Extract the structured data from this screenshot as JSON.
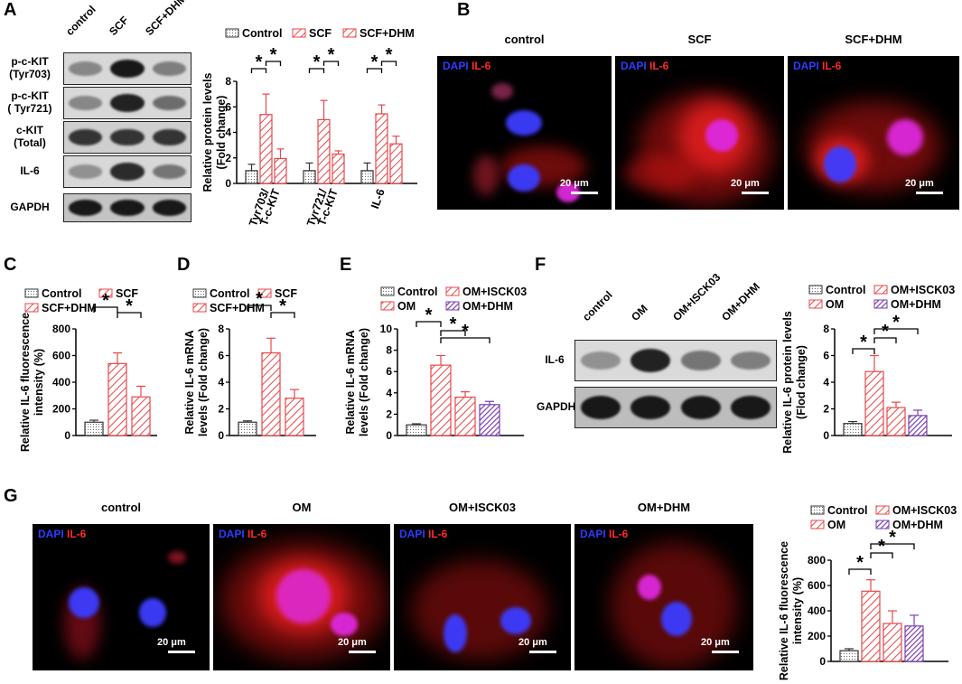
{
  "panels": {
    "A": "A",
    "B": "B",
    "C": "C",
    "D": "D",
    "E": "E",
    "F": "F",
    "G": "G"
  },
  "blotA": {
    "lanes": [
      "control",
      "SCF",
      "SCF+DHM"
    ],
    "rows": [
      {
        "label": "p-c-KIT\n(Tyr703)",
        "intensity": [
          0.35,
          0.95,
          0.4
        ]
      },
      {
        "label": "p-c-KIT\n( Tyr721)",
        "intensity": [
          0.35,
          0.9,
          0.5
        ]
      },
      {
        "label": "c-KIT\n(Total)",
        "intensity": [
          0.8,
          0.8,
          0.8
        ]
      },
      {
        "label": "IL-6",
        "intensity": [
          0.3,
          0.85,
          0.45
        ]
      },
      {
        "label": "GAPDH",
        "intensity": [
          0.95,
          0.95,
          0.95
        ]
      }
    ]
  },
  "blotF": {
    "lanes": [
      "control",
      "OM",
      "OM+ISCK03",
      "OM+DHM"
    ],
    "rows": [
      {
        "label": "IL-6",
        "intensity": [
          0.3,
          0.9,
          0.45,
          0.4
        ]
      },
      {
        "label": "GAPDH",
        "intensity": [
          0.95,
          0.95,
          0.95,
          0.95
        ]
      }
    ]
  },
  "micrographs": {
    "dapi": "DAPI",
    "il6": "IL-6",
    "scale": "20 μm",
    "B_titles": [
      "control",
      "SCF",
      "SCF+DHM"
    ],
    "G_titles": [
      "control",
      "OM",
      "OM+ISCK03",
      "OM+DHM"
    ]
  },
  "colors": {
    "control": "#555555",
    "scf": "#e8474b",
    "om": "#e8474b",
    "isck": "#e8474b",
    "dhm": "#7a3fb0"
  },
  "chart_data": [
    {
      "id": "A",
      "type": "bar",
      "ylabel": "Relative protein levels\n(Fold change)",
      "ylim": [
        0,
        8
      ],
      "yticks": [
        0,
        2,
        4,
        6,
        8
      ],
      "categories": [
        "Tyr703/\nT-c-KIT",
        "Tyr721/\nT-c-KIT",
        "IL-6"
      ],
      "series": [
        {
          "name": "Control",
          "values": [
            1.0,
            1.0,
            1.0
          ],
          "errors": [
            0.5,
            0.6,
            0.6
          ]
        },
        {
          "name": "SCF",
          "values": [
            5.4,
            5.0,
            5.45
          ],
          "errors": [
            1.6,
            1.5,
            0.7
          ]
        },
        {
          "name": "SCF+DHM",
          "values": [
            1.95,
            2.3,
            3.1
          ],
          "errors": [
            0.75,
            0.25,
            0.6
          ]
        }
      ],
      "legend": "top",
      "significance": "*"
    },
    {
      "id": "C",
      "type": "bar",
      "ylabel": "Relative IL-6 fluorescence\nintensity (%)",
      "ylim": [
        0,
        800
      ],
      "yticks": [
        0,
        200,
        400,
        600,
        800
      ],
      "categories": [
        "Control",
        "SCF",
        "SCF+DHM"
      ],
      "series": [
        {
          "name": "",
          "values": [
            100,
            540,
            290
          ],
          "errors": [
            15,
            80,
            80
          ]
        }
      ],
      "legend_entries": [
        "Control",
        "SCF",
        "SCF+DHM"
      ],
      "significance": "*"
    },
    {
      "id": "D",
      "type": "bar",
      "ylabel": "Relative  IL-6 mRNA\nlevels (Fold change)",
      "ylim": [
        0,
        8
      ],
      "yticks": [
        0,
        2,
        4,
        6,
        8
      ],
      "categories": [
        "Control",
        "SCF",
        "SCF+DHM"
      ],
      "series": [
        {
          "name": "",
          "values": [
            1.0,
            6.2,
            2.8
          ],
          "errors": [
            0.1,
            1.1,
            0.65
          ]
        }
      ],
      "legend_entries": [
        "Control",
        "SCF",
        "SCF+DHM"
      ],
      "significance": "*"
    },
    {
      "id": "E",
      "type": "bar",
      "ylabel": "Relative  IL-6 mRNA\nlevels (Fold change)",
      "ylim": [
        0,
        10
      ],
      "yticks": [
        0,
        2,
        4,
        6,
        8,
        10
      ],
      "categories": [
        "Control",
        "OM",
        "OM+ISCK03",
        "OM+DHM"
      ],
      "series": [
        {
          "name": "",
          "values": [
            1.0,
            6.6,
            3.6,
            2.9
          ],
          "errors": [
            0.1,
            0.9,
            0.5,
            0.3
          ]
        }
      ],
      "legend_entries": [
        "Control",
        "OM+ISCK03",
        "OM",
        "OM+DHM"
      ],
      "significance": "*"
    },
    {
      "id": "F",
      "type": "bar",
      "ylabel": "Relative IL-6 protein levels\n(Flod change)",
      "ylim": [
        0,
        8
      ],
      "yticks": [
        0,
        2,
        4,
        6,
        8
      ],
      "categories": [
        "Control",
        "OM",
        "OM+ISCK03",
        "OM+DHM"
      ],
      "series": [
        {
          "name": "",
          "values": [
            0.9,
            4.8,
            2.1,
            1.5
          ],
          "errors": [
            0.15,
            1.2,
            0.4,
            0.4
          ]
        }
      ],
      "legend_entries": [
        "Control",
        "OM+ISCK03",
        "OM",
        "OM+DHM"
      ],
      "significance": "*"
    },
    {
      "id": "G",
      "type": "bar",
      "ylabel": "Relative IL-6 fluorescence\nintensity (%)",
      "ylim": [
        0,
        800
      ],
      "yticks": [
        0,
        200,
        400,
        600,
        800
      ],
      "categories": [
        "Control",
        "OM",
        "OM+ISCK03",
        "OM+DHM"
      ],
      "series": [
        {
          "name": "",
          "values": [
            85,
            555,
            300,
            280
          ],
          "errors": [
            15,
            90,
            100,
            85
          ]
        }
      ],
      "legend_entries": [
        "Control",
        "OM+ISCK03",
        "OM",
        "OM+DHM"
      ],
      "significance": "*"
    }
  ]
}
